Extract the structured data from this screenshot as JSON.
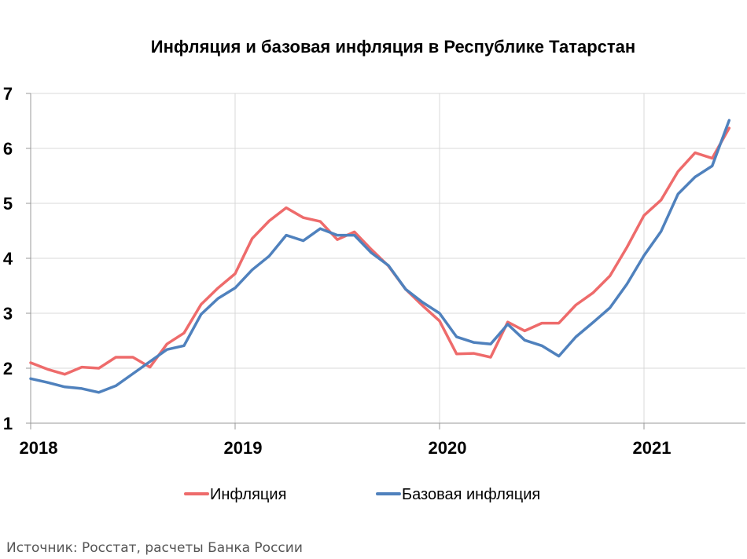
{
  "chart_data": {
    "type": "line",
    "title": "Инфляция и базовая инфляция в Республике Татарстан",
    "xlabel": "",
    "ylabel": "",
    "ylim": [
      1,
      7
    ],
    "yticks": [
      "1",
      "2",
      "3",
      "4",
      "5",
      "6",
      "7"
    ],
    "xticks": [
      "2018",
      "2019",
      "2020",
      "2021"
    ],
    "grid": true,
    "legend_position": "bottom",
    "x": [
      "2018-01",
      "2018-02",
      "2018-03",
      "2018-04",
      "2018-05",
      "2018-06",
      "2018-07",
      "2018-08",
      "2018-09",
      "2018-10",
      "2018-11",
      "2018-12",
      "2019-01",
      "2019-02",
      "2019-03",
      "2019-04",
      "2019-05",
      "2019-06",
      "2019-07",
      "2019-08",
      "2019-09",
      "2019-10",
      "2019-11",
      "2019-12",
      "2020-01",
      "2020-02",
      "2020-03",
      "2020-04",
      "2020-05",
      "2020-06",
      "2020-07",
      "2020-08",
      "2020-09",
      "2020-10",
      "2020-11",
      "2020-12",
      "2021-01",
      "2021-02",
      "2021-03",
      "2021-04",
      "2021-05",
      "2021-06"
    ],
    "series": [
      {
        "name": "Инфляция",
        "color": "#ee6b6b",
        "values": [
          2.1,
          1.98,
          1.89,
          2.02,
          2.0,
          2.2,
          2.2,
          2.02,
          2.44,
          2.64,
          3.16,
          3.46,
          3.72,
          4.36,
          4.68,
          4.92,
          4.74,
          4.67,
          4.34,
          4.48,
          4.16,
          3.86,
          3.44,
          3.14,
          2.86,
          2.26,
          2.27,
          2.2,
          2.84,
          2.68,
          2.82,
          2.82,
          3.15,
          3.37,
          3.68,
          4.2,
          4.78,
          5.06,
          5.58,
          5.92,
          5.82,
          6.37
        ]
      },
      {
        "name": "Базовая инфляция",
        "color": "#4f81bd",
        "values": [
          1.81,
          1.74,
          1.66,
          1.63,
          1.56,
          1.68,
          1.9,
          2.12,
          2.34,
          2.41,
          2.98,
          3.27,
          3.46,
          3.79,
          4.04,
          4.42,
          4.32,
          4.54,
          4.42,
          4.42,
          4.1,
          3.87,
          3.44,
          3.2,
          3.0,
          2.57,
          2.47,
          2.44,
          2.8,
          2.51,
          2.41,
          2.22,
          2.57,
          2.83,
          3.1,
          3.53,
          4.05,
          4.49,
          5.17,
          5.48,
          5.68,
          6.51
        ]
      }
    ]
  },
  "source_note": "Источник: Росстат, расчеты Банка России"
}
